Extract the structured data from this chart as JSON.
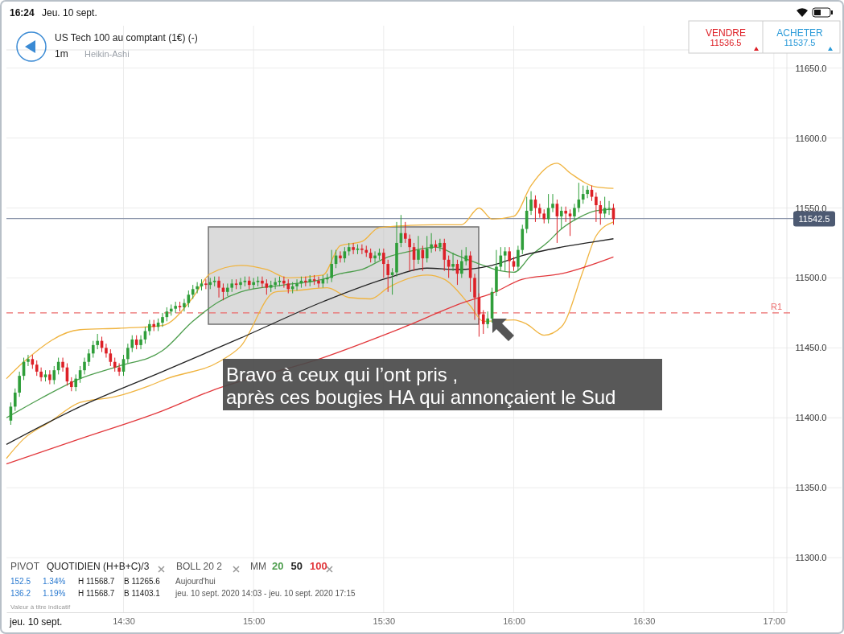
{
  "chart_data": {
    "type": "candlestick",
    "title": "US Tech 100 au comptant (1€) (-)",
    "subtitle": "1m",
    "x": [
      "2020-09-10T14:04",
      "2020-09-10T14:05",
      "2020-09-10T14:06",
      "2020-09-10T14:07",
      "2020-09-10T14:08",
      "2020-09-10T14:09",
      "2020-09-10T14:10",
      "2020-09-10T14:11",
      "2020-09-10T14:12",
      "2020-09-10T14:13",
      "2020-09-10T14:14",
      "2020-09-10T14:15",
      "2020-09-10T14:16",
      "2020-09-10T14:17",
      "2020-09-10T14:18",
      "2020-09-10T14:19",
      "2020-09-10T14:20",
      "2020-09-10T14:21",
      "2020-09-10T14:22",
      "2020-09-10T14:23",
      "2020-09-10T14:24",
      "2020-09-10T14:25",
      "2020-09-10T14:26",
      "2020-09-10T14:27",
      "2020-09-10T14:28",
      "2020-09-10T14:29",
      "2020-09-10T14:30",
      "2020-09-10T14:31",
      "2020-09-10T14:32",
      "2020-09-10T14:33",
      "2020-09-10T14:34",
      "2020-09-10T14:35",
      "2020-09-10T14:36",
      "2020-09-10T14:37",
      "2020-09-10T14:38",
      "2020-09-10T14:39",
      "2020-09-10T14:40",
      "2020-09-10T14:41",
      "2020-09-10T14:42",
      "2020-09-10T14:43",
      "2020-09-10T14:44",
      "2020-09-10T14:45",
      "2020-09-10T14:46",
      "2020-09-10T14:47",
      "2020-09-10T14:48",
      "2020-09-10T14:49",
      "2020-09-10T14:50",
      "2020-09-10T14:51",
      "2020-09-10T14:52",
      "2020-09-10T14:53",
      "2020-09-10T14:54",
      "2020-09-10T14:55",
      "2020-09-10T14:56",
      "2020-09-10T14:57",
      "2020-09-10T14:58",
      "2020-09-10T14:59",
      "2020-09-10T15:00",
      "2020-09-10T15:01",
      "2020-09-10T15:02",
      "2020-09-10T15:03",
      "2020-09-10T15:04",
      "2020-09-10T15:05",
      "2020-09-10T15:06",
      "2020-09-10T15:07",
      "2020-09-10T15:08",
      "2020-09-10T15:09",
      "2020-09-10T15:10",
      "2020-09-10T15:11",
      "2020-09-10T15:12",
      "2020-09-10T15:13",
      "2020-09-10T15:14",
      "2020-09-10T15:15",
      "2020-09-10T15:16",
      "2020-09-10T15:17",
      "2020-09-10T15:18",
      "2020-09-10T15:19",
      "2020-09-10T15:20",
      "2020-09-10T15:21",
      "2020-09-10T15:22",
      "2020-09-10T15:23",
      "2020-09-10T15:24",
      "2020-09-10T15:25",
      "2020-09-10T15:26",
      "2020-09-10T15:27",
      "2020-09-10T15:28",
      "2020-09-10T15:29",
      "2020-09-10T15:30",
      "2020-09-10T15:31",
      "2020-09-10T15:32",
      "2020-09-10T15:33",
      "2020-09-10T15:34",
      "2020-09-10T15:35",
      "2020-09-10T15:36",
      "2020-09-10T15:37",
      "2020-09-10T15:38",
      "2020-09-10T15:39",
      "2020-09-10T15:40",
      "2020-09-10T15:41",
      "2020-09-10T15:42",
      "2020-09-10T15:43",
      "2020-09-10T15:44",
      "2020-09-10T15:45",
      "2020-09-10T15:46",
      "2020-09-10T15:47",
      "2020-09-10T15:48",
      "2020-09-10T15:49",
      "2020-09-10T15:50",
      "2020-09-10T15:51",
      "2020-09-10T15:52",
      "2020-09-10T15:53",
      "2020-09-10T15:54",
      "2020-09-10T15:55",
      "2020-09-10T15:56",
      "2020-09-10T15:57",
      "2020-09-10T15:58",
      "2020-09-10T15:59",
      "2020-09-10T16:00",
      "2020-09-10T16:01",
      "2020-09-10T16:02",
      "2020-09-10T16:03",
      "2020-09-10T16:04",
      "2020-09-10T16:05",
      "2020-09-10T16:06",
      "2020-09-10T16:07",
      "2020-09-10T16:08",
      "2020-09-10T16:09",
      "2020-09-10T16:10",
      "2020-09-10T16:11",
      "2020-09-10T16:12",
      "2020-09-10T16:13",
      "2020-09-10T16:14",
      "2020-09-10T16:15",
      "2020-09-10T16:16",
      "2020-09-10T16:17",
      "2020-09-10T16:18",
      "2020-09-10T16:19",
      "2020-09-10T16:20",
      "2020-09-10T16:21",
      "2020-09-10T16:22",
      "2020-09-10T16:23"
    ],
    "ohlc": [
      [
        11398,
        11411,
        11395,
        11408
      ],
      [
        11408,
        11421,
        11405,
        11418
      ],
      [
        11418,
        11433,
        11415,
        11430
      ],
      [
        11430,
        11443,
        11427,
        11440
      ],
      [
        11440,
        11445,
        11437,
        11442
      ],
      [
        11442,
        11445,
        11435,
        11438
      ],
      [
        11438,
        11441,
        11430,
        11433
      ],
      [
        11433,
        11436,
        11426,
        11429
      ],
      [
        11429,
        11434,
        11426,
        11431
      ],
      [
        11431,
        11434,
        11424,
        11427
      ],
      [
        11427,
        11437,
        11424,
        11434
      ],
      [
        11434,
        11443,
        11431,
        11440
      ],
      [
        11440,
        11443,
        11433,
        11436
      ],
      [
        11436,
        11439,
        11423,
        11426
      ],
      [
        11426,
        11429,
        11419,
        11422
      ],
      [
        11422,
        11431,
        11419,
        11428
      ],
      [
        11428,
        11437,
        11425,
        11434
      ],
      [
        11434,
        11443,
        11431,
        11440
      ],
      [
        11440,
        11449,
        11437,
        11446
      ],
      [
        11446,
        11455,
        11443,
        11452
      ],
      [
        11452,
        11460,
        11449,
        11455
      ],
      [
        11455,
        11458,
        11447,
        11450
      ],
      [
        11450,
        11453,
        11443,
        11446
      ],
      [
        11446,
        11449,
        11437,
        11440
      ],
      [
        11440,
        11443,
        11433,
        11436
      ],
      [
        11436,
        11439,
        11430,
        11433
      ],
      [
        11433,
        11445,
        11430,
        11442
      ],
      [
        11442,
        11453,
        11439,
        11450
      ],
      [
        11450,
        11459,
        11447,
        11456
      ],
      [
        11456,
        11459,
        11449,
        11452
      ],
      [
        11452,
        11459,
        11449,
        11456
      ],
      [
        11456,
        11465,
        11453,
        11462
      ],
      [
        11462,
        11470,
        11459,
        11467
      ],
      [
        11467,
        11470,
        11462,
        11465
      ],
      [
        11465,
        11471,
        11462,
        11468
      ],
      [
        11468,
        11475,
        11465,
        11472
      ],
      [
        11472,
        11479,
        11469,
        11476
      ],
      [
        11476,
        11481,
        11473,
        11478
      ],
      [
        11478,
        11483,
        11475,
        11480
      ],
      [
        11480,
        11483,
        11476,
        11479
      ],
      [
        11479,
        11485,
        11476,
        11482
      ],
      [
        11482,
        11491,
        11479,
        11488
      ],
      [
        11488,
        11495,
        11485,
        11492
      ],
      [
        11492,
        11497,
        11489,
        11494
      ],
      [
        11494,
        11499,
        11491,
        11496
      ],
      [
        11496,
        11499,
        11492,
        11495
      ],
      [
        11495,
        11500,
        11492,
        11497
      ],
      [
        11497,
        11501,
        11494,
        11498
      ],
      [
        11498,
        11501,
        11486,
        11493
      ],
      [
        11493,
        11496,
        11484,
        11490
      ],
      [
        11490,
        11496,
        11487,
        11493
      ],
      [
        11493,
        11499,
        11490,
        11496
      ],
      [
        11496,
        11499,
        11492,
        11495
      ],
      [
        11495,
        11500,
        11492,
        11497
      ],
      [
        11497,
        11501,
        11494,
        11498
      ],
      [
        11498,
        11501,
        11492,
        11495
      ],
      [
        11495,
        11500,
        11492,
        11497
      ],
      [
        11497,
        11501,
        11494,
        11498
      ],
      [
        11498,
        11501,
        11493,
        11496
      ],
      [
        11496,
        11499,
        11488,
        11493
      ],
      [
        11493,
        11498,
        11490,
        11495
      ],
      [
        11495,
        11500,
        11492,
        11497
      ],
      [
        11497,
        11501,
        11494,
        11498
      ],
      [
        11498,
        11501,
        11493,
        11496
      ],
      [
        11496,
        11499,
        11489,
        11492
      ],
      [
        11492,
        11497,
        11489,
        11494
      ],
      [
        11494,
        11499,
        11491,
        11496
      ],
      [
        11496,
        11501,
        11493,
        11498
      ],
      [
        11498,
        11501,
        11494,
        11497
      ],
      [
        11497,
        11502,
        11494,
        11499
      ],
      [
        11499,
        11502,
        11495,
        11498
      ],
      [
        11498,
        11501,
        11493,
        11496
      ],
      [
        11496,
        11502,
        11493,
        11499
      ],
      [
        11499,
        11503,
        11496,
        11500
      ],
      [
        11500,
        11520,
        11497,
        11510
      ],
      [
        11510,
        11520,
        11507,
        11516
      ],
      [
        11516,
        11519,
        11511,
        11514
      ],
      [
        11514,
        11522,
        11511,
        11519
      ],
      [
        11519,
        11525,
        11516,
        11522
      ],
      [
        11522,
        11525,
        11517,
        11520
      ],
      [
        11520,
        11524,
        11517,
        11521
      ],
      [
        11521,
        11524,
        11517,
        11520
      ],
      [
        11520,
        11523,
        11515,
        11518
      ],
      [
        11518,
        11521,
        11511,
        11514
      ],
      [
        11514,
        11519,
        11511,
        11516
      ],
      [
        11516,
        11521,
        11513,
        11518
      ],
      [
        11518,
        11521,
        11500,
        11510
      ],
      [
        11510,
        11513,
        11490,
        11502
      ],
      [
        11502,
        11507,
        11488,
        11504
      ],
      [
        11504,
        11540,
        11501,
        11525
      ],
      [
        11525,
        11545,
        11522,
        11532
      ],
      [
        11532,
        11540,
        11525,
        11528
      ],
      [
        11528,
        11531,
        11505,
        11522
      ],
      [
        11522,
        11525,
        11505,
        11513
      ],
      [
        11513,
        11530,
        11510,
        11520
      ],
      [
        11520,
        11523,
        11505,
        11514
      ],
      [
        11514,
        11530,
        11511,
        11521
      ],
      [
        11521,
        11532,
        11518,
        11524
      ],
      [
        11524,
        11527,
        11519,
        11522
      ],
      [
        11522,
        11528,
        11519,
        11525
      ],
      [
        11525,
        11528,
        11505,
        11513
      ],
      [
        11513,
        11516,
        11500,
        11508
      ],
      [
        11508,
        11518,
        11505,
        11510
      ],
      [
        11510,
        11513,
        11495,
        11503
      ],
      [
        11503,
        11520,
        11500,
        11512
      ],
      [
        11512,
        11522,
        11509,
        11516
      ],
      [
        11516,
        11519,
        11490,
        11500
      ],
      [
        11500,
        11503,
        11470,
        11486
      ],
      [
        11486,
        11489,
        11458,
        11474
      ],
      [
        11474,
        11477,
        11460,
        11467
      ],
      [
        11467,
        11476,
        11464,
        11471
      ],
      [
        11471,
        11493,
        11468,
        11490
      ],
      [
        11490,
        11520,
        11487,
        11508
      ],
      [
        11508,
        11522,
        11505,
        11516
      ],
      [
        11516,
        11522,
        11505,
        11519
      ],
      [
        11519,
        11522,
        11500,
        11512
      ],
      [
        11512,
        11515,
        11505,
        11508
      ],
      [
        11508,
        11523,
        11505,
        11520
      ],
      [
        11520,
        11538,
        11517,
        11535
      ],
      [
        11535,
        11558,
        11532,
        11548
      ],
      [
        11548,
        11562,
        11545,
        11556
      ],
      [
        11556,
        11559,
        11540,
        11550
      ],
      [
        11550,
        11553,
        11543,
        11546
      ],
      [
        11546,
        11549,
        11539,
        11542
      ],
      [
        11542,
        11560,
        11539,
        11550
      ],
      [
        11550,
        11560,
        11547,
        11553
      ],
      [
        11553,
        11556,
        11525,
        11544
      ],
      [
        11544,
        11551,
        11535,
        11548
      ],
      [
        11548,
        11551,
        11540,
        11546
      ],
      [
        11546,
        11549,
        11530,
        11544
      ],
      [
        11544,
        11553,
        11541,
        11550
      ],
      [
        11550,
        11568,
        11547,
        11556
      ],
      [
        11556,
        11566,
        11553,
        11560
      ],
      [
        11560,
        11566,
        11557,
        11563
      ],
      [
        11563,
        11566,
        11555,
        11558
      ],
      [
        11558,
        11561,
        11540,
        11552
      ],
      [
        11552,
        11555,
        11538,
        11546
      ],
      [
        11546,
        11558,
        11543,
        11550
      ],
      [
        11550,
        11555,
        11545,
        11550
      ],
      [
        11550,
        11553,
        11538,
        11542
      ]
    ],
    "series": [
      {
        "type": "line",
        "color": "#f0b440",
        "x": [
          "2020-09-10T14:03",
          "2020-09-10T14:07",
          "2020-09-10T14:20",
          "2020-09-10T14:29",
          "2020-09-10T14:39",
          "2020-09-10T14:46",
          "2020-09-10T14:50",
          "2020-09-10T14:57",
          "2020-09-10T15:03",
          "2020-09-10T15:08",
          "2020-09-10T15:16",
          "2020-09-10T15:20",
          "2020-09-10T15:25",
          "2020-09-10T15:29",
          "2020-09-10T15:42",
          "2020-09-10T15:48",
          "2020-09-10T15:52",
          "2020-09-10T15:55",
          "2020-09-10T16:00",
          "2020-09-10T16:04",
          "2020-09-10T16:10",
          "2020-09-10T16:13",
          "2020-09-10T16:19",
          "2020-09-10T16:23"
        ],
        "values": [
          11428,
          11440,
          11463,
          11464,
          11466,
          11486,
          11503,
          11509,
          11506,
          11500,
          11502,
          11523,
          11526,
          11536,
          11538,
          11538,
          11550,
          11542,
          11544,
          11566,
          11582,
          11575,
          11565,
          11564
        ]
      },
      {
        "type": "line",
        "color": "#f0b440",
        "x": [
          "2020-09-10T14:03",
          "2020-09-10T14:07",
          "2020-09-10T14:13",
          "2020-09-10T14:20",
          "2020-09-10T14:28",
          "2020-09-10T14:36",
          "2020-09-10T14:40",
          "2020-09-10T14:52",
          "2020-09-10T14:57",
          "2020-09-10T15:05",
          "2020-09-10T15:10",
          "2020-09-10T15:17",
          "2020-09-10T15:22",
          "2020-09-10T15:27",
          "2020-09-10T15:31",
          "2020-09-10T15:40",
          "2020-09-10T15:44",
          "2020-09-10T15:50",
          "2020-09-10T15:53",
          "2020-09-10T16:00",
          "2020-09-10T16:03",
          "2020-09-10T16:07",
          "2020-09-10T16:11",
          "2020-09-10T16:16",
          "2020-09-10T16:19",
          "2020-09-10T16:23"
        ],
        "values": [
          11371,
          11385,
          11397,
          11411,
          11415,
          11423,
          11428,
          11440,
          11451,
          11490,
          11491,
          11493,
          11486,
          11485,
          11493,
          11502,
          11499,
          11480,
          11469,
          11470,
          11467,
          11459,
          11465,
          11505,
          11530,
          11540
        ]
      },
      {
        "type": "line",
        "name": "20",
        "color": "#4e9e4e",
        "x": [
          "2020-09-10T14:03",
          "2020-09-10T14:11",
          "2020-09-10T14:20",
          "2020-09-10T14:29",
          "2020-09-10T14:39",
          "2020-09-10T14:46",
          "2020-09-10T14:52",
          "2020-09-10T14:57",
          "2020-09-10T15:07",
          "2020-09-10T15:16",
          "2020-09-10T15:20",
          "2020-09-10T15:25",
          "2020-09-10T15:31",
          "2020-09-10T15:36",
          "2020-09-10T15:42",
          "2020-09-10T15:47",
          "2020-09-10T15:53",
          "2020-09-10T15:57",
          "2020-09-10T16:00",
          "2020-09-10T16:04",
          "2020-09-10T16:08",
          "2020-09-10T16:11",
          "2020-09-10T16:15",
          "2020-09-10T16:19",
          "2020-09-10T16:23"
        ],
        "values": [
          11400,
          11414,
          11428,
          11437,
          11448,
          11469,
          11483,
          11490,
          11495,
          11499,
          11503,
          11506,
          11515,
          11519,
          11522,
          11516,
          11509,
          11505,
          11504,
          11516,
          11526,
          11535,
          11543,
          11548,
          11549
        ]
      },
      {
        "type": "line",
        "name": "50",
        "color": "#222222",
        "x": [
          "2020-09-10T14:03",
          "2020-09-10T14:20",
          "2020-09-10T14:39",
          "2020-09-10T14:57",
          "2020-09-10T15:16",
          "2020-09-10T15:31",
          "2020-09-10T15:40",
          "2020-09-10T15:47",
          "2020-09-10T15:55",
          "2020-09-10T16:02",
          "2020-09-10T16:11",
          "2020-09-10T16:19",
          "2020-09-10T16:23"
        ],
        "values": [
          11381,
          11408,
          11433,
          11457,
          11483,
          11500,
          11507,
          11506,
          11509,
          11516,
          11522,
          11526,
          11528
        ]
      },
      {
        "type": "line",
        "name": "100",
        "color": "#e2383c",
        "x": [
          "2020-09-10T14:03",
          "2020-09-10T14:20",
          "2020-09-10T14:39",
          "2020-09-10T14:50",
          "2020-09-10T15:16",
          "2020-09-10T15:34",
          "2020-09-10T15:49",
          "2020-09-10T15:55",
          "2020-09-10T16:02",
          "2020-09-10T16:11",
          "2020-09-10T16:23"
        ],
        "values": [
          11367,
          11385,
          11405,
          11419,
          11443,
          11464,
          11483,
          11489,
          11499,
          11503,
          11515
        ]
      }
    ],
    "xlim": [
      "2020-09-10T14:03",
      "2020-09-10T17:03"
    ],
    "xticks": [
      {
        "value": "2020-09-10T14:30",
        "label": "14:30"
      },
      {
        "value": "2020-09-10T15:00",
        "label": "15:00"
      },
      {
        "value": "2020-09-10T15:30",
        "label": "15:30"
      },
      {
        "value": "2020-09-10T16:00",
        "label": "16:00"
      },
      {
        "value": "2020-09-10T16:30",
        "label": "16:30"
      },
      {
        "value": "2020-09-10T17:00",
        "label": "17:00"
      }
    ],
    "ylim": [
      11261,
      11663
    ],
    "yticks": [
      {
        "value": 11300,
        "label": "11300.0"
      },
      {
        "value": 11350,
        "label": "11350.0"
      },
      {
        "value": 11400,
        "label": "11400.0"
      },
      {
        "value": 11450,
        "label": "11450.0"
      },
      {
        "value": 11500,
        "label": "11500.0"
      },
      {
        "value": 11550,
        "label": "11550.0"
      },
      {
        "value": 11600,
        "label": "11600.0"
      },
      {
        "value": 11650,
        "label": "11650.0"
      }
    ],
    "ref_lines": [
      {
        "axis": "y",
        "value": 11475,
        "label": "R1",
        "color": "#ec6a6a",
        "line_style": "dashed"
      },
      {
        "axis": "y",
        "value": 11542.5,
        "label": "11542.5",
        "color": "#8c95aa",
        "line_style": "solid"
      }
    ],
    "grid": true,
    "legend": "bottom",
    "annotations": [
      "16:24",
      "Jeu. 10 sept.",
      "Heikin-Ashi",
      "VENDRE",
      "11536.5",
      "ACHETER",
      "11537.5",
      "Bravo à ceux qui l’ont pris ,",
      "après ces bougies HA qui annonçaient le Sud",
      "PIVOT",
      "QUOTIDIEN (H+B+C)/3",
      "BOLL 20 2",
      "MM",
      "152.5",
      "1.34%",
      "H 11568.7",
      "B 11265.6",
      "Aujourd'hui",
      "136.2",
      "1.19%",
      "H 11568.7",
      "B 11403.1",
      "jeu. 10 sept. 2020 14:03 - jeu. 10 sept. 2020 17:15",
      "Valeur à titre indicatif",
      "jeu. 10 sept."
    ]
  }
}
